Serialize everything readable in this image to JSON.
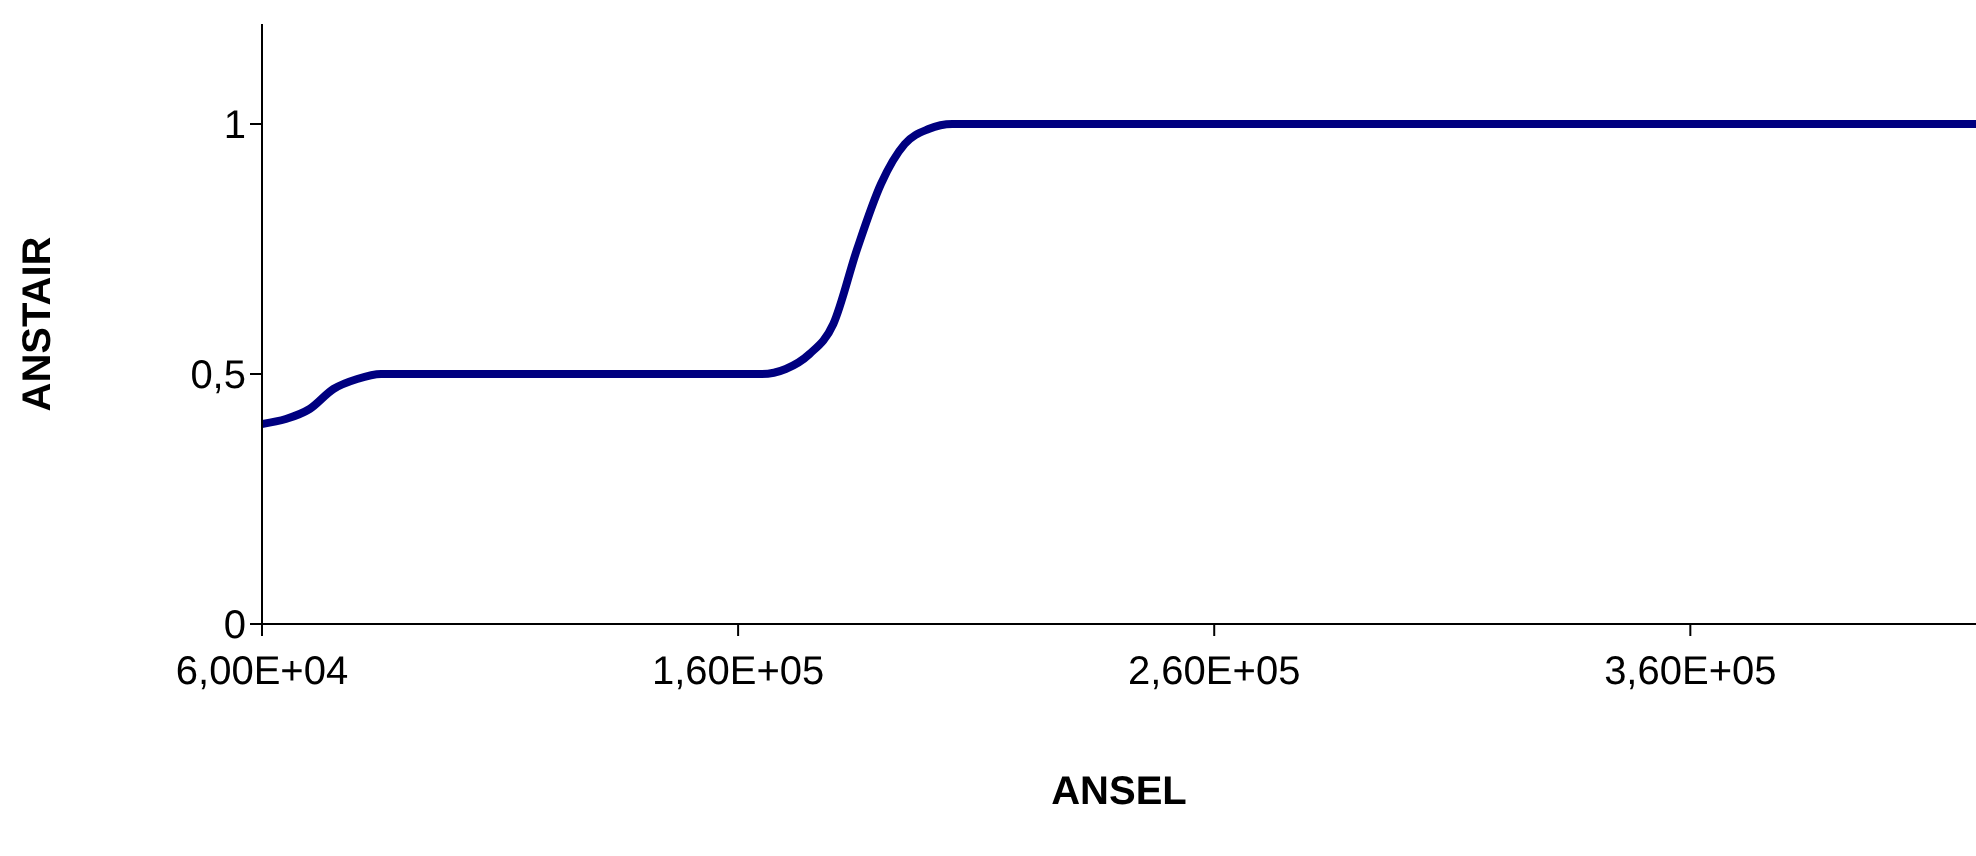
{
  "chart_data": {
    "type": "line",
    "xlabel": "ANSEL",
    "ylabel": "ANSTAIR",
    "categories": [
      "6,00E+04",
      null,
      null,
      null,
      null,
      null,
      null,
      null,
      null,
      null,
      null,
      null,
      null,
      null,
      null,
      null,
      null,
      null,
      null,
      null,
      "1,60E+05",
      null,
      null,
      null,
      null,
      null,
      null,
      null,
      null,
      null,
      null,
      null,
      null,
      null,
      null,
      null,
      null,
      null,
      null,
      null,
      "2,60E+05",
      null,
      null,
      null,
      null,
      null,
      null,
      null,
      null,
      null,
      null,
      null,
      null,
      null,
      null,
      null,
      null,
      null,
      null,
      null,
      "3,60E+05",
      null,
      null,
      null,
      null,
      null,
      null,
      null,
      null,
      null,
      null,
      null,
      null
    ],
    "series": [
      {
        "color": "#000080",
        "values": [
          0.4,
          0.41,
          0.43,
          0.47,
          0.49,
          0.5,
          0.5,
          0.5,
          0.5,
          0.5,
          0.5,
          0.5,
          0.5,
          0.5,
          0.5,
          0.5,
          0.5,
          0.5,
          0.5,
          0.5,
          0.5,
          0.5,
          0.51,
          0.54,
          0.6,
          0.75,
          0.88,
          0.96,
          0.99,
          1,
          1,
          1,
          1,
          1,
          1,
          1,
          1,
          1,
          1,
          1,
          1,
          1,
          1,
          1,
          1,
          1,
          1,
          1,
          1,
          1,
          1,
          1,
          1,
          1,
          1,
          1,
          1,
          1,
          1,
          1,
          1,
          1,
          1,
          1,
          1,
          1,
          1,
          1,
          1,
          1,
          1,
          1,
          1
        ]
      }
    ],
    "ylim": [
      0,
      1.2
    ],
    "yticks": [
      {
        "value": 0,
        "label": "0"
      },
      {
        "value": 0.5,
        "label": "0,5"
      },
      {
        "value": 1,
        "label": "1"
      }
    ],
    "grid": false,
    "legend": false,
    "marker": "none",
    "line_style": "solid"
  }
}
